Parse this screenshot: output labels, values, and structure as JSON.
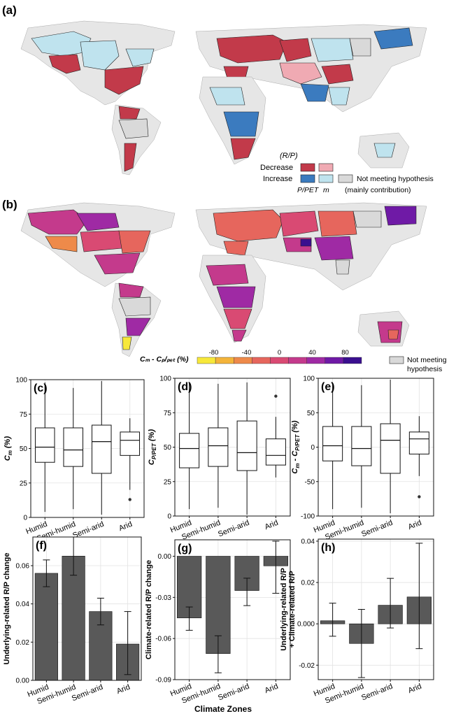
{
  "panel_labels": {
    "a": "(a)",
    "b": "(b)",
    "c": "(c)",
    "d": "(d)",
    "e": "(e)",
    "f": "(f)",
    "g": "(g)",
    "h": "(h)"
  },
  "legend_a": {
    "title": "(R/P)",
    "decrease": "Decrease",
    "increase": "Increase",
    "col_pet": "P/PET",
    "col_m": "m",
    "not_meeting": "Not meeting hypothesis",
    "mainly": "(mainly contribution)",
    "colors": {
      "dec_pet": "#c23a4a",
      "dec_m": "#f0aab3",
      "inc_pet": "#3b7bbf",
      "inc_m": "#bfe3ee",
      "none": "#d9d9d9",
      "land": "#e6e6e6"
    }
  },
  "legend_b": {
    "label": "Cₘ - Cₚ/ₚₑₜ (%)",
    "ticks": [
      "-80",
      "-40",
      "0",
      "40",
      "80"
    ],
    "not_meeting_1": "Not meeting",
    "not_meeting_2": "hypothesis",
    "colors": [
      "#f7e83a",
      "#f4b43a",
      "#ee8a4a",
      "#e6665d",
      "#d94a73",
      "#c43a8c",
      "#9f2aa4",
      "#6f1aa6",
      "#3a0f8f"
    ]
  },
  "chart_data": [
    {
      "id": "c",
      "type": "box",
      "panel": "(c)",
      "ylabel_main": "C",
      "ylabel_sub": "m",
      "ylabel_unit": " (%)",
      "categories": [
        "Humid",
        "Semi-humid",
        "Semi-arid",
        "Arid"
      ],
      "ylim": [
        0,
        100
      ],
      "yticks": [
        0,
        25,
        50,
        75,
        100
      ],
      "boxes": [
        {
          "min": 4,
          "q1": 40,
          "median": 51,
          "q3": 65,
          "max": 98
        },
        {
          "min": 6,
          "q1": 37,
          "median": 49,
          "q3": 65,
          "max": 94
        },
        {
          "min": 2,
          "q1": 32,
          "median": 55,
          "q3": 67,
          "max": 99
        },
        {
          "min": 20,
          "q1": 45,
          "median": 56,
          "q3": 62,
          "max": 72,
          "outliers": [
            13
          ]
        }
      ]
    },
    {
      "id": "d",
      "type": "box",
      "panel": "(d)",
      "ylabel_main": "C",
      "ylabel_sub": "P/PET",
      "ylabel_unit": " (%)",
      "categories": [
        "Humid",
        "Semi-humid",
        "Semi-arid",
        "Arid"
      ],
      "ylim": [
        0,
        100
      ],
      "yticks": [
        0,
        25,
        50,
        75,
        100
      ],
      "boxes": [
        {
          "min": 5,
          "q1": 35,
          "median": 49,
          "q3": 60,
          "max": 97
        },
        {
          "min": 6,
          "q1": 36,
          "median": 51,
          "q3": 64,
          "max": 96
        },
        {
          "min": 1,
          "q1": 33,
          "median": 46,
          "q3": 69,
          "max": 97
        },
        {
          "min": 28,
          "q1": 37,
          "median": 44,
          "q3": 56,
          "max": 72,
          "outliers": [
            87
          ]
        }
      ]
    },
    {
      "id": "e",
      "type": "box",
      "panel": "(e)",
      "ylabel_main": "C",
      "ylabel_sub": "m",
      "ylabel_mid": " - C",
      "ylabel_sub2": "P/PET",
      "ylabel_unit": " (%)",
      "categories": [
        "Humid",
        "Semi-humid",
        "Semi-arid",
        "Arid"
      ],
      "ylim": [
        -100,
        100
      ],
      "yticks": [
        -100,
        -50,
        0,
        50,
        100
      ],
      "boxes": [
        {
          "min": -90,
          "q1": -20,
          "median": 2,
          "q3": 30,
          "max": 93
        },
        {
          "min": -88,
          "q1": -27,
          "median": -2,
          "q3": 30,
          "max": 90
        },
        {
          "min": -96,
          "q1": -38,
          "median": 10,
          "q3": 34,
          "max": 98
        },
        {
          "min": -42,
          "q1": -10,
          "median": 12,
          "q3": 22,
          "max": 45,
          "outliers": [
            -72
          ]
        }
      ]
    },
    {
      "id": "f",
      "type": "bar",
      "panel": "(f)",
      "ylabel": "Underlying-related R/P change",
      "categories": [
        "Humid",
        "Semi-humid",
        "Semi-arid",
        "Arid"
      ],
      "ylim": [
        0,
        0.075
      ],
      "yticks": [
        0.0,
        0.02,
        0.04,
        0.06
      ],
      "ytick_labels": [
        "0.00",
        "0.02",
        "0.04",
        "0.06"
      ],
      "values": [
        0.056,
        0.065,
        0.036,
        0.019
      ],
      "err_low": [
        0.049,
        0.055,
        0.029,
        0.003
      ],
      "err_high": [
        0.063,
        0.075,
        0.043,
        0.036
      ]
    },
    {
      "id": "g",
      "type": "bar",
      "panel": "(g)",
      "ylabel": "Climate-related R/P change",
      "categories": [
        "Humid",
        "Semi-humid",
        "Semi-arid",
        "Arid"
      ],
      "ylim": [
        -0.09,
        0.012
      ],
      "yticks": [
        -0.09,
        -0.06,
        -0.03,
        0.0
      ],
      "ytick_labels": [
        "-0.09",
        "-0.06",
        "-0.03",
        "0.00"
      ],
      "values": [
        -0.045,
        -0.071,
        -0.025,
        -0.007
      ],
      "err_low": [
        -0.054,
        -0.085,
        -0.036,
        -0.027
      ],
      "err_high": [
        -0.037,
        -0.058,
        -0.016,
        0.011
      ]
    },
    {
      "id": "h",
      "type": "bar",
      "panel": "(h)",
      "ylabel_line1": "Underlying-related R/P",
      "ylabel_line2": "+ Climate-related R/P",
      "categories": [
        "Humid",
        "Semi-humid",
        "Semi-arid",
        "Arid"
      ],
      "ylim": [
        -0.027,
        0.041
      ],
      "yticks": [
        -0.02,
        0.0,
        0.02,
        0.04
      ],
      "ytick_labels": [
        "-0.02",
        "0.000",
        "0.02",
        "0.04"
      ],
      "values": [
        0.0015,
        -0.0095,
        0.009,
        0.013
      ],
      "err_low": [
        -0.006,
        -0.026,
        -0.002,
        -0.012
      ],
      "err_high": [
        0.01,
        0.007,
        0.022,
        0.039
      ]
    }
  ],
  "xlabel_shared": "Climate Zones"
}
